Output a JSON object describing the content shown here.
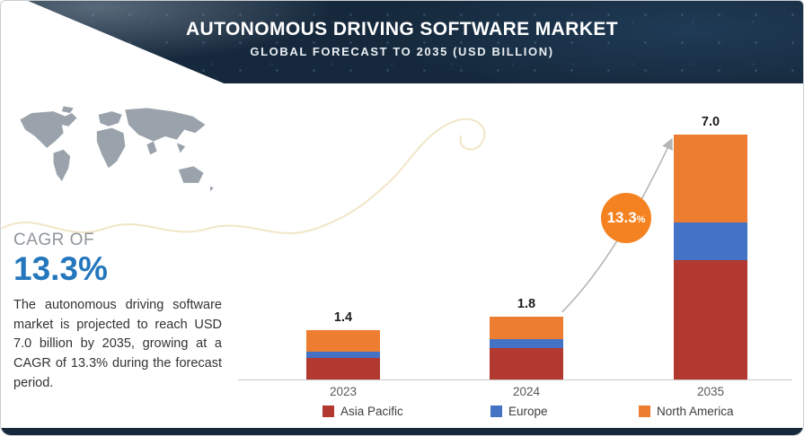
{
  "header": {
    "title": "AUTONOMOUS DRIVING SOFTWARE MARKET",
    "subtitle": "GLOBAL FORECAST TO 2035 (USD BILLION)"
  },
  "sidebar": {
    "cagr_label": "CAGR OF",
    "cagr_value": "13.3%",
    "description": "The autonomous driving software market is projected to reach USD 7.0 billion by 2035, growing at a CAGR of 13.3% during the forecast period."
  },
  "badge": {
    "value": "13.3",
    "percent": "%"
  },
  "colors": {
    "header_bg": "#16293c",
    "accent_blue": "#2477bd",
    "badge_orange": "#f58220",
    "map_gray": "#9aa2ab",
    "axis_gray": "#c6c6c6",
    "bottom_bar": "#16293c"
  },
  "chart_data": {
    "type": "bar",
    "stacked": true,
    "title": "AUTONOMOUS DRIVING SOFTWARE MARKET — GLOBAL FORECAST TO 2035 (USD BILLION)",
    "unit": "USD Billion",
    "categories": [
      "2023",
      "2024",
      "2035"
    ],
    "series": [
      {
        "name": "Asia Pacific",
        "color": "#b2392f",
        "values": [
          0.6,
          0.9,
          3.4
        ]
      },
      {
        "name": "Europe",
        "color": "#4472c4",
        "values": [
          0.2,
          0.25,
          1.1
        ]
      },
      {
        "name": "North America",
        "color": "#ed7d31",
        "values": [
          0.6,
          0.65,
          2.5
        ]
      }
    ],
    "totals": [
      1.4,
      1.8,
      7.0
    ],
    "total_labels": [
      "1.4",
      "1.8",
      "7.0"
    ],
    "annotation": "13.3%",
    "legend_position": "bottom",
    "grid": false,
    "ylim": [
      0,
      7.5
    ]
  }
}
